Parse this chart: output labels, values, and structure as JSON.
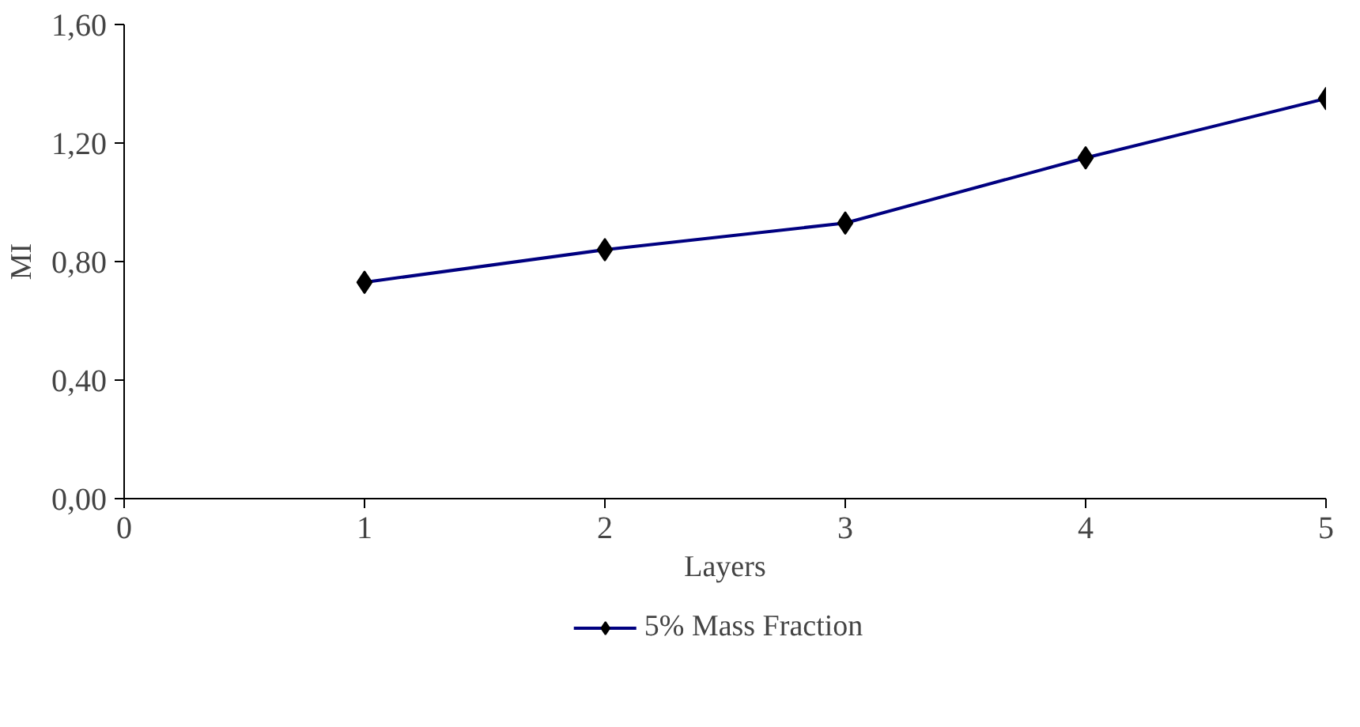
{
  "chart_data": {
    "type": "line",
    "xlabel": "Layers",
    "ylabel": "MI",
    "x": [
      1,
      2,
      3,
      4,
      5
    ],
    "series": [
      {
        "name": "5% Mass Fraction",
        "color": "#000080",
        "values": [
          0.73,
          0.84,
          0.93,
          1.15,
          1.35
        ]
      }
    ],
    "xlim": [
      0,
      5
    ],
    "xticks": [
      0,
      1,
      2,
      3,
      4,
      5
    ],
    "ylim": [
      0,
      1.6
    ],
    "yticks": [
      {
        "value": 0,
        "label": "0,00"
      },
      {
        "value": 0.4,
        "label": "0,40"
      },
      {
        "value": 0.8,
        "label": "0,80"
      },
      {
        "value": 1.2,
        "label": "1,20"
      },
      {
        "value": 1.6,
        "label": "1,60"
      }
    ],
    "grid": false,
    "legend": "bottom",
    "marker": "diamond",
    "line_style": "solid"
  }
}
